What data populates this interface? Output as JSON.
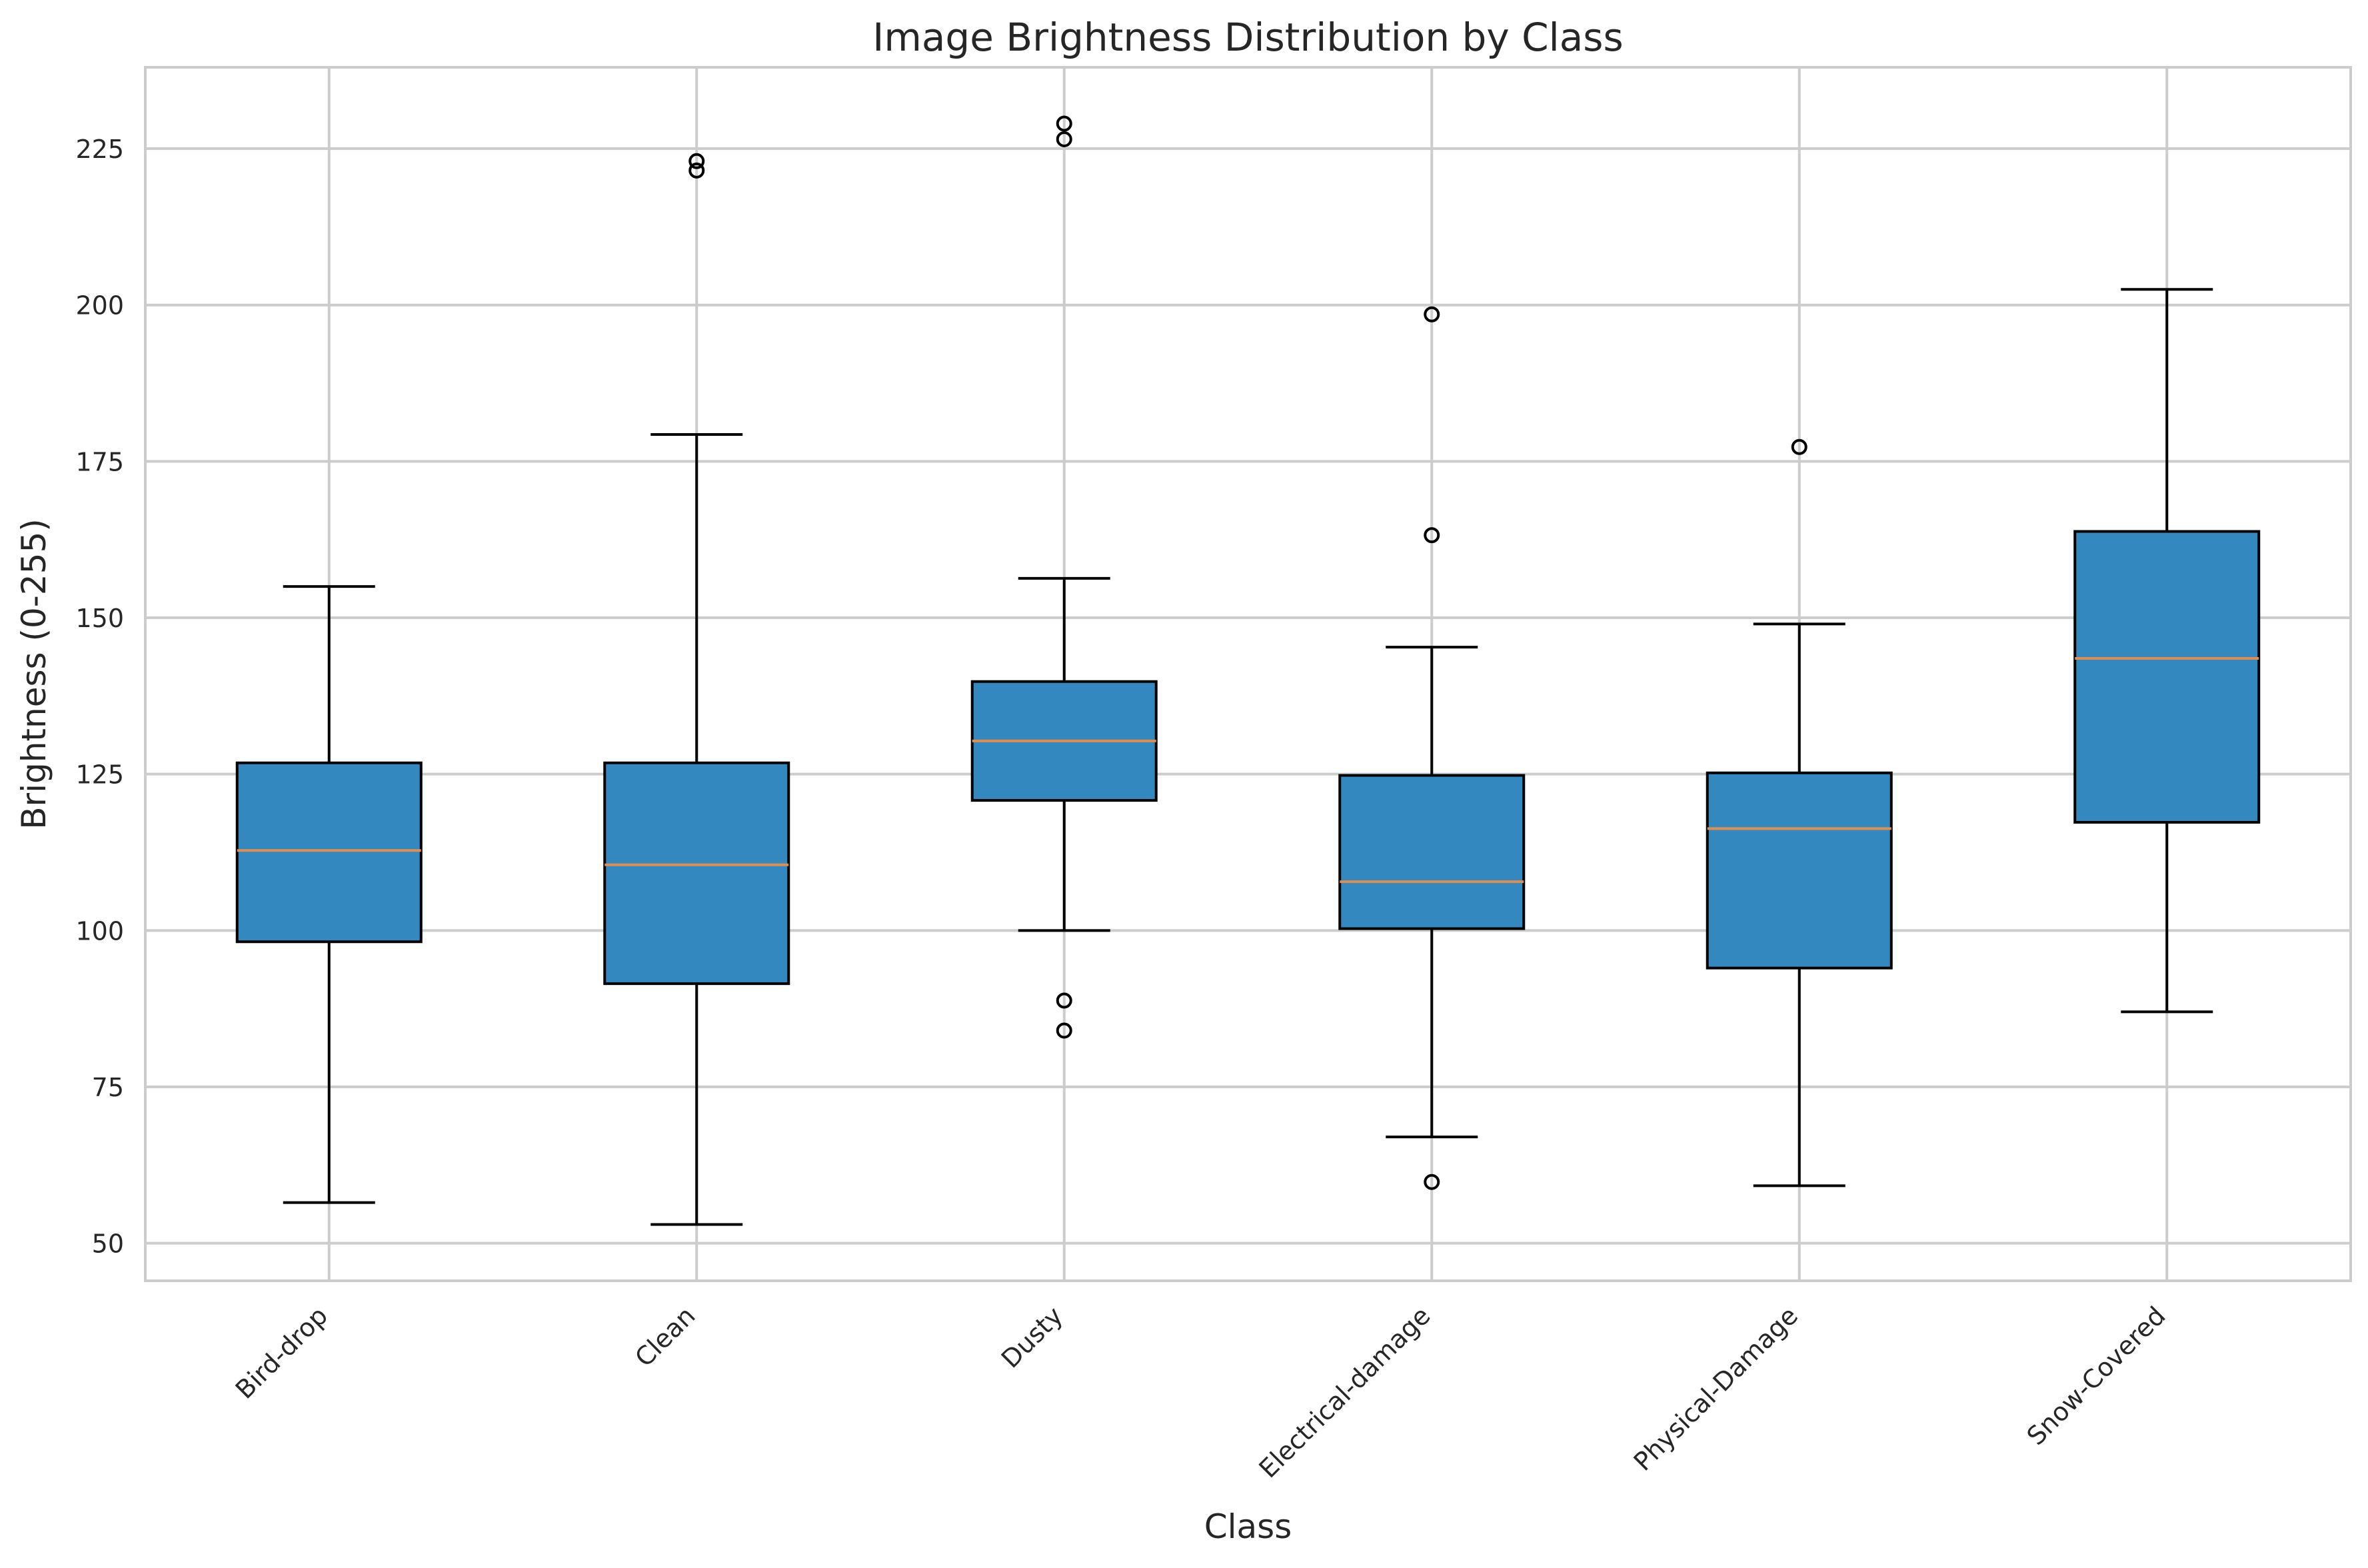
{
  "chart_data": {
    "type": "boxplot",
    "title": "Image Brightness Distribution by Class",
    "xlabel": "Class",
    "ylabel": "Brightness (0-255)",
    "ylim": [
      44,
      238
    ],
    "yticks": [
      50,
      75,
      100,
      125,
      150,
      175,
      200,
      225
    ],
    "grid": true,
    "categories": [
      "Bird-drop",
      "Clean",
      "Dusty",
      "Electrical-damage",
      "Physical-Damage",
      "Snow-Covered"
    ],
    "boxes": [
      {
        "name": "Bird-drop",
        "whisker_low": 56.5,
        "q1": 98.2,
        "median": 112.8,
        "q3": 126.8,
        "whisker_high": 155,
        "outliers": []
      },
      {
        "name": "Clean",
        "whisker_low": 53,
        "q1": 91.5,
        "median": 110.5,
        "q3": 126.8,
        "whisker_high": 179.3,
        "outliers": [
          221.5,
          223
        ]
      },
      {
        "name": "Dusty",
        "whisker_low": 100,
        "q1": 120.8,
        "median": 130.3,
        "q3": 139.8,
        "whisker_high": 156.3,
        "outliers": [
          84,
          88.8,
          226.5,
          229
        ]
      },
      {
        "name": "Electrical-damage",
        "whisker_low": 67,
        "q1": 100.3,
        "median": 107.8,
        "q3": 124.8,
        "whisker_high": 145.3,
        "outliers": [
          59.8,
          163.2,
          198.5
        ]
      },
      {
        "name": "Physical-Damage",
        "whisker_low": 59.2,
        "q1": 94,
        "median": 116.3,
        "q3": 125.2,
        "whisker_high": 149,
        "outliers": [
          177.3
        ]
      },
      {
        "name": "Snow-Covered",
        "whisker_low": 87,
        "q1": 117.3,
        "median": 143.5,
        "q3": 163.8,
        "whisker_high": 202.5,
        "outliers": []
      }
    ],
    "colors": {
      "box_fill": "#3388bf",
      "box_edge": "#000000",
      "median": "#e08e4f",
      "grid": "#cccccc",
      "spine": "#cccccc",
      "text": "#262626"
    }
  }
}
